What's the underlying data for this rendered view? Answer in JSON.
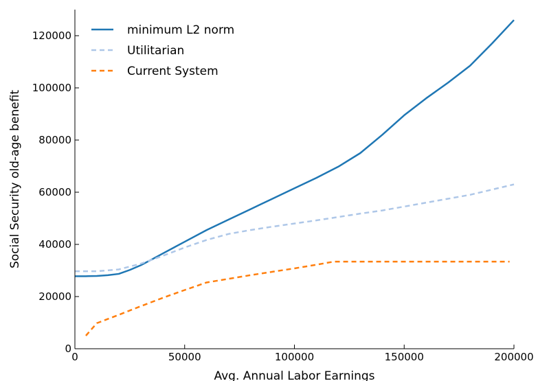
{
  "chart_data": {
    "type": "line",
    "xlabel": "Avg. Annual Labor Earnings",
    "ylabel": "Social Security old-age benefit",
    "xlim": [
      0,
      200000
    ],
    "ylim": [
      0,
      130000
    ],
    "grid": false,
    "legend_position": "top-left",
    "x_ticks": [
      "0",
      "50000",
      "100000",
      "150000",
      "200000"
    ],
    "y_ticks": [
      "0",
      "20000",
      "40000",
      "60000",
      "80000",
      "100000",
      "120000"
    ],
    "series": [
      {
        "name": "minimum L2 norm",
        "color": "#1f77b4",
        "style": "solid",
        "x": [
          0,
          5000,
          10000,
          15000,
          20000,
          25000,
          30000,
          35000,
          40000,
          50000,
          60000,
          70000,
          80000,
          90000,
          100000,
          110000,
          120000,
          130000,
          140000,
          150000,
          160000,
          170000,
          180000,
          190000,
          200000
        ],
        "y": [
          27800,
          27800,
          27900,
          28200,
          28700,
          30200,
          32000,
          34200,
          36500,
          41000,
          45500,
          49500,
          53500,
          57500,
          61500,
          65500,
          69800,
          75000,
          82000,
          89500,
          96000,
          102000,
          108500,
          117000,
          126000
        ]
      },
      {
        "name": "Utilitarian",
        "color": "#aec7e8",
        "style": "dashed",
        "x": [
          0,
          10000,
          20000,
          30000,
          40000,
          50000,
          60000,
          70000,
          80000,
          90000,
          100000,
          110000,
          120000,
          130000,
          140000,
          150000,
          160000,
          170000,
          180000,
          190000,
          200000
        ],
        "y": [
          29700,
          29700,
          30400,
          32600,
          35600,
          38800,
          41700,
          44000,
          45500,
          46800,
          48000,
          49200,
          50500,
          51800,
          53000,
          54500,
          56000,
          57500,
          59000,
          61000,
          63000
        ]
      },
      {
        "name": "Current System",
        "color": "#ff7f0e",
        "style": "dashed",
        "x": [
          5000,
          10000,
          20000,
          30000,
          40000,
          50000,
          60000,
          70000,
          80000,
          90000,
          100000,
          110000,
          118000,
          130000,
          150000,
          170000,
          190000,
          198000
        ],
        "y": [
          5000,
          9800,
          13000,
          16300,
          19500,
          22500,
          25400,
          26800,
          28200,
          29500,
          30800,
          32200,
          33400,
          33400,
          33400,
          33400,
          33400,
          33400
        ]
      }
    ]
  }
}
